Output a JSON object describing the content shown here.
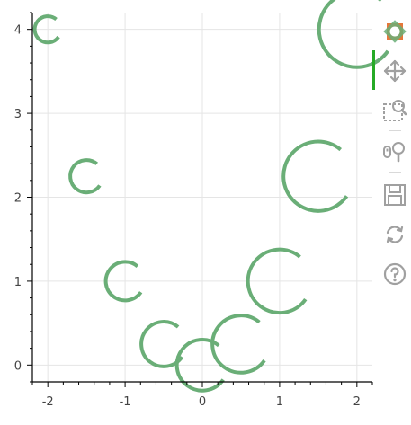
{
  "chart_data": {
    "type": "scatter",
    "glyph": "arc",
    "title": "",
    "xlabel": "",
    "ylabel": "",
    "xlim": [
      -2.2,
      2.2
    ],
    "ylim": [
      -0.2,
      4.2
    ],
    "x_ticks": [
      -2,
      -1,
      0,
      1,
      2
    ],
    "x_tick_labels": [
      "-2",
      "-1",
      "0",
      "1",
      "2"
    ],
    "y_ticks": [
      0,
      1,
      2,
      3,
      4
    ],
    "y_tick_labels": [
      "0",
      "1",
      "2",
      "3",
      "4"
    ],
    "grid": true,
    "color": "#6aae77",
    "points": [
      {
        "x": -2.0,
        "y": 4.0,
        "radius": 0.17
      },
      {
        "x": -1.5,
        "y": 2.25,
        "radius": 0.21
      },
      {
        "x": -1.0,
        "y": 1.0,
        "radius": 0.25
      },
      {
        "x": -0.5,
        "y": 0.25,
        "radius": 0.29
      },
      {
        "x": 0.0,
        "y": 0.0,
        "radius": 0.33
      },
      {
        "x": 0.5,
        "y": 0.25,
        "radius": 0.37
      },
      {
        "x": 1.0,
        "y": 1.0,
        "radius": 0.41
      },
      {
        "x": 1.5,
        "y": 2.25,
        "radius": 0.45
      },
      {
        "x": 2.0,
        "y": 4.0,
        "radius": 0.49
      }
    ],
    "arc_start_deg": 50,
    "arc_end_deg": 325
  },
  "toolbar": {
    "tools": [
      {
        "name": "bokeh-logo",
        "icon": "bokeh-logo-icon",
        "interactable": false
      },
      {
        "name": "pan-tool",
        "icon": "pan-icon",
        "interactable": true,
        "active": true
      },
      {
        "name": "box-zoom-tool",
        "icon": "box-zoom-icon",
        "interactable": true
      },
      {
        "name": "wheel-zoom-tool",
        "icon": "wheel-zoom-icon",
        "interactable": true
      },
      {
        "name": "save-tool",
        "icon": "save-icon",
        "interactable": true
      },
      {
        "name": "reset-tool",
        "icon": "reset-icon",
        "interactable": true
      },
      {
        "name": "help-tool",
        "icon": "help-icon",
        "interactable": true
      }
    ],
    "icon_color": "#a0a0a0",
    "active_color": "#26aa26"
  }
}
